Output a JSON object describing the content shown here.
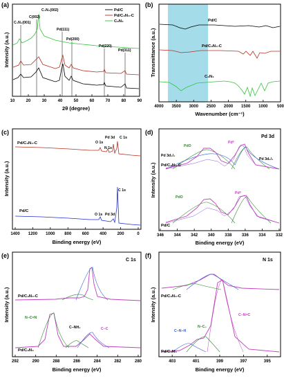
{
  "chart_data": [
    {
      "panel": "(a)",
      "type": "line",
      "xlabel": "2θ (degree)",
      "ylabel": "Intensity (a.u.)",
      "xlim": [
        10,
        90
      ],
      "xticks": [
        10,
        20,
        30,
        40,
        50,
        60,
        70,
        80,
        90
      ],
      "legend": [
        "Pd/C",
        "Pd/C₃N₄-C",
        "C₃N₄"
      ],
      "legend_position": "top-right",
      "colors": [
        "#000000",
        "#b5301f",
        "#35c43a"
      ],
      "annotations": [
        "C₃N₄(001)",
        "C(002)",
        "C₃N₄(002)",
        "Pd(111)",
        "Pd(200)",
        "Pd(220)",
        "Pd(311)"
      ],
      "peaks_deg": [
        13.0,
        24.5,
        27.4,
        40.0,
        46.5,
        68.0,
        82.0
      ]
    },
    {
      "panel": "(b)",
      "type": "line",
      "xlabel": "Wavenumber (cm⁻¹)",
      "ylabel": "Transmittance (a.u.)",
      "xlim": [
        4000,
        500
      ],
      "xticks": [
        4000,
        3500,
        3000,
        2500,
        2000,
        1500,
        1000,
        500
      ],
      "series": [
        "Pd/C",
        "Pd/C₃N₄-C",
        "C₃N₄"
      ],
      "colors": [
        "#000000",
        "#b5301f",
        "#35c43a"
      ],
      "highlight_band": [
        3600,
        2900
      ]
    },
    {
      "panel": "(c)",
      "type": "line",
      "xlabel": "Binding energy (eV)",
      "ylabel": "Intensity (a.u.)",
      "xlim": [
        1400,
        0
      ],
      "xticks": [
        1400,
        1200,
        1000,
        800,
        600,
        400,
        200,
        0
      ],
      "series": [
        "Pd/C₃N₄-C",
        "Pd/C"
      ],
      "colors": [
        "#b5301f",
        "#1f2fd0"
      ],
      "annotations_top": [
        "O 1s",
        "N 1s",
        "Pd 3d",
        "C 1s"
      ],
      "annotations_bottom": [
        "O 1s",
        "Pd 3d",
        "C 1s"
      ],
      "peaks_ev": {
        "O 1s": 531,
        "N 1s": 399,
        "Pd 3d": 337,
        "C 1s": 284.6
      }
    },
    {
      "panel": "(d)",
      "title": "Pd 3d",
      "type": "line",
      "xlabel": "Binding energy (eV)",
      "ylabel": "Intensity (a.u.)",
      "xlim": [
        346,
        332
      ],
      "xticks": [
        346,
        344,
        342,
        340,
        338,
        336,
        334,
        332
      ],
      "samples": [
        "Pd/C₃N₄-C",
        "Pd/C"
      ],
      "annotations": [
        "PdO",
        "Pd⁰",
        "Pd 3d₃/₂",
        "Pd 3d₅/₂",
        "PdO",
        "Pd⁰"
      ],
      "components_ev": {
        "Pd 3d3/2 PdO": 341.6,
        "Pd 3d3/2 Pd0": 340.6,
        "Pd 3d5/2 PdO": 336.3,
        "Pd 3d5/2 Pd0": 335.4
      }
    },
    {
      "panel": "(e)",
      "title": "C 1s",
      "type": "line",
      "xlabel": "Binding energy (eV)",
      "ylabel": "Intensity (a.u.)",
      "xlim": [
        292,
        280
      ],
      "xticks": [
        292,
        290,
        288,
        286,
        284,
        282,
        280
      ],
      "samples": [
        "Pd/C₃N₄-C",
        "Pd/C₃N₄"
      ],
      "annotations": [
        "N−C=N",
        "C−NH₂",
        "C−C"
      ],
      "components_ev": {
        "N-C=N": 288.2,
        "C-NH2": 286.0,
        "C-C": 284.6
      }
    },
    {
      "panel": "(f)",
      "title": "N 1s",
      "type": "line",
      "xlabel": "Binding energy (eV)",
      "ylabel": "Intensity (a.u.)",
      "xlim": [
        404,
        394
      ],
      "xticks": [
        403,
        401,
        399,
        397,
        395
      ],
      "samples": [
        "Pd/C₃N₄-C",
        "Pd/C₃N₄"
      ],
      "annotations": [
        "C−N−H",
        "N−C₃",
        "C−N=C"
      ],
      "components_ev": {
        "C-N-H": 401.0,
        "N-C3": 399.8,
        "C-N=C": 398.6
      }
    }
  ]
}
